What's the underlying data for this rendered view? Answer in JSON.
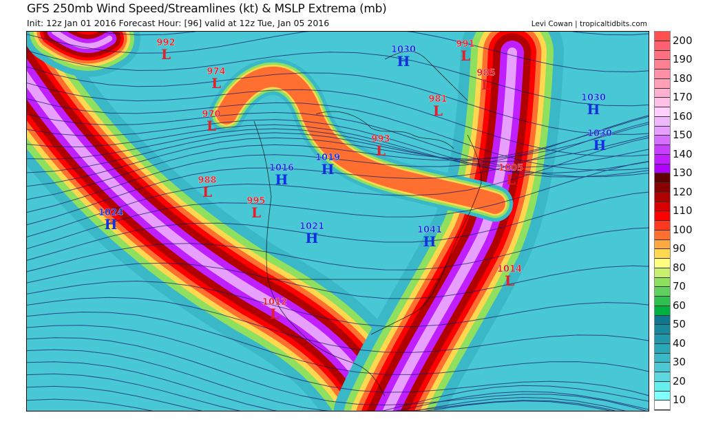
{
  "header": {
    "title": "GFS 250mb Wind Speed/Streamlines (kt) & MSLP Extrema (mb)",
    "subtitle": "Init: 12z Jan 01 2016   Forecast Hour: [96]   valid at 12z Tue, Jan 05 2016",
    "credit": "Levi Cowan | tropicaltidbits.com"
  },
  "pressure_centers": [
    {
      "type": "L",
      "value": "992"
    },
    {
      "type": "L",
      "value": "974"
    },
    {
      "type": "L",
      "value": "970"
    },
    {
      "type": "L",
      "value": "988"
    },
    {
      "type": "L",
      "value": "995"
    },
    {
      "type": "H",
      "value": "1024"
    },
    {
      "type": "L",
      "value": "1012"
    },
    {
      "type": "H",
      "value": "1016"
    },
    {
      "type": "H",
      "value": "1019"
    },
    {
      "type": "H",
      "value": "1021"
    },
    {
      "type": "H",
      "value": "1041"
    },
    {
      "type": "H",
      "value": "1030"
    },
    {
      "type": "L",
      "value": "991"
    },
    {
      "type": "L",
      "value": "985"
    },
    {
      "type": "L",
      "value": "981"
    },
    {
      "type": "L",
      "value": "993"
    },
    {
      "type": "L",
      "value": "1005"
    },
    {
      "type": "L",
      "value": "1014"
    },
    {
      "type": "H",
      "value": "1030"
    },
    {
      "type": "H",
      "value": "1030"
    }
  ],
  "colorbar": {
    "unit": "kt",
    "tick_labels": [
      "200",
      "190",
      "180",
      "170",
      "160",
      "150",
      "140",
      "130",
      "120",
      "110",
      "100",
      "90",
      "80",
      "70",
      "60",
      "50",
      "40",
      "30",
      "20",
      "10"
    ],
    "colors_bottom_to_top": [
      "#ffffff",
      "#80ffff",
      "#66eeee",
      "#5ed8e0",
      "#4cc8d4",
      "#3bb8c8",
      "#2aa8b8",
      "#2298aa",
      "#1a889c",
      "#10788e",
      "#00b040",
      "#30c050",
      "#60d060",
      "#90e060",
      "#c8f070",
      "#ffff80",
      "#ffd850",
      "#ffa840",
      "#ff7030",
      "#ff3820",
      "#ff0000",
      "#d80000",
      "#b00000",
      "#880000",
      "#600000",
      "#b000ff",
      "#c020ff",
      "#c840ff",
      "#d870ff",
      "#e8a0ff",
      "#f0b8ff",
      "#ffd0ff",
      "#ffc0e8",
      "#ffb0d0",
      "#ffa0b8",
      "#ff90a8",
      "#ff8090",
      "#ff7080",
      "#ff6070",
      "#ff5050"
    ]
  }
}
